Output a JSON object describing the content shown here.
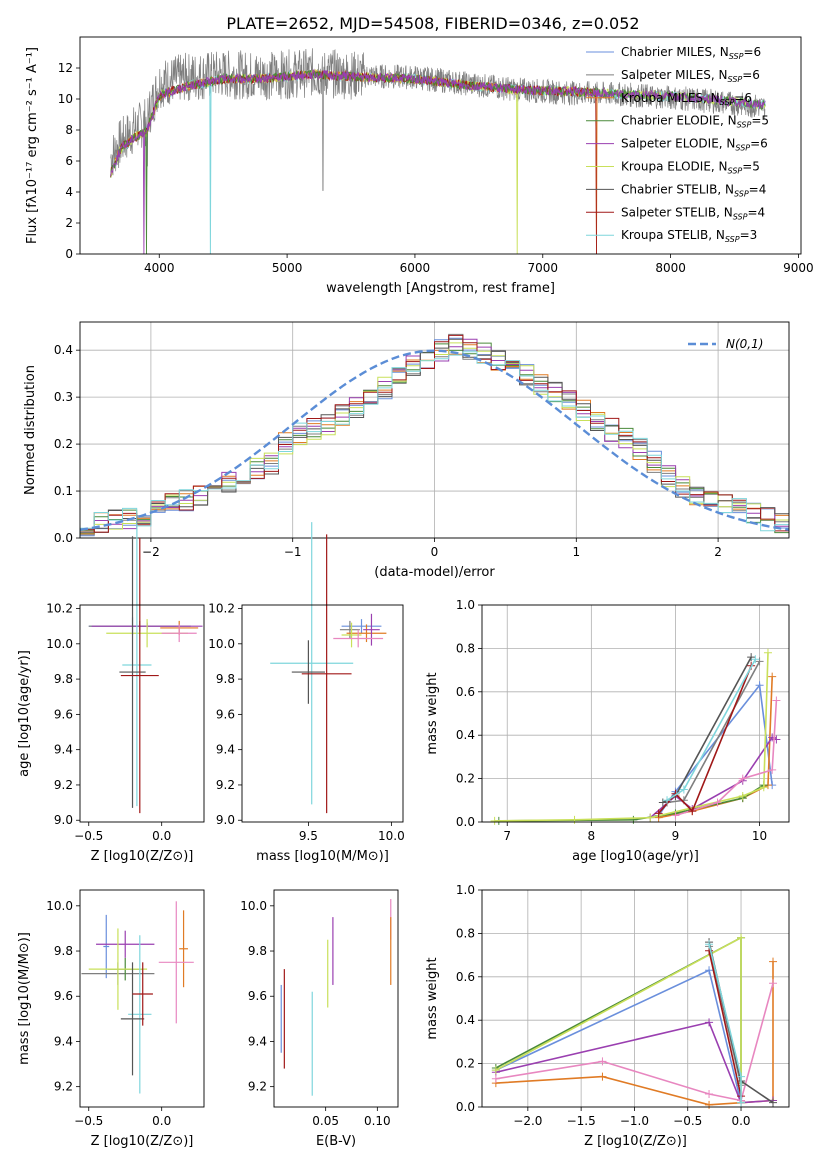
{
  "title": "PLATE=2652, MJD=54508, FIBERID=0346, z=0.052",
  "colors": {
    "chabrier_miles": "#6a8fdc",
    "salpeter_miles": "#7f7f7f",
    "kroupa_miles": "#e07b25",
    "chabrier_elodie": "#4a8a3a",
    "salpeter_elodie": "#9a3fb0",
    "kroupa_elodie": "#c9e05a",
    "chabrier_stelib": "#555555",
    "salpeter_stelib": "#a01818",
    "kroupa_stelib": "#7fd6dc",
    "pink": "#e887c0",
    "gaussian": "#5b8dd6"
  },
  "chart_data": [
    {
      "id": "spectrum",
      "type": "line",
      "xlabel": "wavelength [Angstrom, rest frame]",
      "ylabel": "Flux [fλ10⁻¹⁷ erg cm⁻² s⁻¹ A⁻¹]",
      "xlim": [
        3380,
        9020
      ],
      "ylim": [
        0,
        14
      ],
      "xticks": [
        4000,
        5000,
        6000,
        7000,
        8000,
        9000
      ],
      "yticks": [
        0,
        2,
        4,
        6,
        8,
        10,
        12
      ],
      "legend_position": "right",
      "legend": [
        {
          "label": "Chabrier MILES, N",
          "sub": "SSP",
          "tail": "=6",
          "color": "chabrier_miles"
        },
        {
          "label": "Salpeter MILES, N",
          "sub": "SSP",
          "tail": "=6",
          "color": "salpeter_miles"
        },
        {
          "label": "Kroupa MILES, N",
          "sub": "SSP",
          "tail": "=6",
          "color": "kroupa_miles"
        },
        {
          "label": "Chabrier ELODIE, N",
          "sub": "SSP",
          "tail": "=5",
          "color": "chabrier_elodie"
        },
        {
          "label": "Salpeter ELODIE, N",
          "sub": "SSP",
          "tail": "=6",
          "color": "salpeter_elodie"
        },
        {
          "label": "Kroupa ELODIE, N",
          "sub": "SSP",
          "tail": "=5",
          "color": "kroupa_elodie"
        },
        {
          "label": "Chabrier STELIB, N",
          "sub": "SSP",
          "tail": "=4",
          "color": "chabrier_stelib"
        },
        {
          "label": "Salpeter STELIB, N",
          "sub": "SSP",
          "tail": "=4",
          "color": "salpeter_stelib"
        },
        {
          "label": "Kroupa STELIB, N",
          "sub": "SSP",
          "tail": "=3",
          "color": "kroupa_stelib"
        }
      ],
      "data_flux": [
        [
          3620,
          6.2
        ],
        [
          3700,
          7.2
        ],
        [
          3800,
          8.0
        ],
        [
          3900,
          8.6
        ],
        [
          4000,
          11.0
        ],
        [
          4200,
          11.4
        ],
        [
          4500,
          11.6
        ],
        [
          4800,
          11.5
        ],
        [
          5200,
          11.7
        ],
        [
          5600,
          11.5
        ],
        [
          6000,
          11.4
        ],
        [
          6400,
          11.0
        ],
        [
          6800,
          10.6
        ],
        [
          7200,
          10.4
        ],
        [
          7600,
          10.3
        ],
        [
          8000,
          10.1
        ],
        [
          8400,
          9.8
        ],
        [
          8700,
          9.5
        ]
      ],
      "model_flux": [
        [
          3620,
          5.2
        ],
        [
          3700,
          6.8
        ],
        [
          3800,
          7.5
        ],
        [
          3900,
          7.9
        ],
        [
          4000,
          10.2
        ],
        [
          4200,
          10.8
        ],
        [
          4500,
          11.3
        ],
        [
          4800,
          11.3
        ],
        [
          5200,
          11.6
        ],
        [
          5600,
          11.4
        ],
        [
          6000,
          11.3
        ],
        [
          6400,
          10.9
        ],
        [
          6800,
          10.6
        ],
        [
          7200,
          10.5
        ],
        [
          7600,
          10.3
        ],
        [
          8000,
          10.2
        ],
        [
          8400,
          9.9
        ],
        [
          8740,
          9.6
        ]
      ]
    },
    {
      "id": "residuals",
      "type": "bar",
      "xlabel": "(data-model)/error",
      "ylabel": "Normed distribution",
      "xlim": [
        -2.5,
        2.5
      ],
      "ylim": [
        0,
        0.46
      ],
      "xticks": [
        -2,
        -1,
        0,
        1,
        2
      ],
      "yticks": [
        0.0,
        0.1,
        0.2,
        0.3,
        0.4
      ],
      "grid": true,
      "legend_position": "top-right",
      "legend_label": "N(0,1)",
      "bin_edges_from": -2.5,
      "bin_width": 0.1,
      "mean_hist": [
        0.02,
        0.03,
        0.04,
        0.04,
        0.05,
        0.06,
        0.07,
        0.08,
        0.09,
        0.1,
        0.12,
        0.13,
        0.15,
        0.16,
        0.2,
        0.22,
        0.23,
        0.24,
        0.26,
        0.28,
        0.3,
        0.32,
        0.34,
        0.37,
        0.38,
        0.4,
        0.41,
        0.4,
        0.39,
        0.38,
        0.36,
        0.35,
        0.33,
        0.31,
        0.29,
        0.27,
        0.25,
        0.23,
        0.21,
        0.19,
        0.16,
        0.13,
        0.11,
        0.09,
        0.08,
        0.07,
        0.06,
        0.05,
        0.04,
        0.03
      ]
    },
    {
      "id": "age_vs_Z",
      "type": "scatter",
      "xlabel": "Z [log10(Z/Z⊙)]",
      "ylabel": "age  [log10(age/yr)]",
      "xlim": [
        -0.56,
        0.29
      ],
      "ylim": [
        8.99,
        10.22
      ],
      "xticks": [
        -0.5,
        0.0
      ],
      "yticks": [
        9.0,
        9.2,
        9.4,
        9.6,
        9.8,
        10.0,
        10.2
      ],
      "points": [
        {
          "c": "chabrier_miles",
          "x": -0.2,
          "y": 10.1,
          "xe": 0.3,
          "ye": 0.05
        },
        {
          "c": "salpeter_miles",
          "x": -0.15,
          "y": 10.1,
          "xe": 0.35,
          "ye": 0.03
        },
        {
          "c": "kroupa_miles",
          "x": 0.12,
          "y": 10.09,
          "xe": 0.13,
          "ye": 0.04
        },
        {
          "c": "salpeter_elodie",
          "x": -0.1,
          "y": 10.1,
          "xe": 0.38,
          "ye": 0.02
        },
        {
          "c": "kroupa_elodie",
          "x": -0.1,
          "y": 10.06,
          "xe": 0.28,
          "ye": 0.08
        },
        {
          "c": "pink",
          "x": 0.12,
          "y": 10.06,
          "xe": 0.12,
          "ye": 0.05
        },
        {
          "c": "kroupa_stelib",
          "x": -0.17,
          "y": 9.88,
          "xe": 0.1,
          "ye": 0.8
        },
        {
          "c": "chabrier_stelib",
          "x": -0.2,
          "y": 9.84,
          "xe": 0.09,
          "ye": 0.77
        },
        {
          "c": "salpeter_stelib",
          "x": -0.15,
          "y": 9.82,
          "xe": 0.13,
          "ye": 0.78
        }
      ]
    },
    {
      "id": "age_vs_mass",
      "type": "scatter",
      "xlabel": "mass [log10(M/M⊙)]",
      "ylabel": "",
      "xlim": [
        9.1,
        10.07
      ],
      "ylim": [
        8.99,
        10.22
      ],
      "xticks": [
        9.5,
        10.0
      ],
      "yticks": [
        9.0,
        9.2,
        9.4,
        9.6,
        9.8,
        10.0,
        10.2
      ],
      "points": [
        {
          "c": "chabrier_miles",
          "x": 9.82,
          "y": 10.1,
          "xe": 0.12,
          "ye": 0.04
        },
        {
          "c": "salpeter_miles",
          "x": 9.75,
          "y": 10.08,
          "xe": 0.06,
          "ye": 0.05
        },
        {
          "c": "kroupa_miles",
          "x": 9.85,
          "y": 10.06,
          "xe": 0.12,
          "ye": 0.05
        },
        {
          "c": "salpeter_elodie",
          "x": 9.88,
          "y": 10.08,
          "xe": 0.05,
          "ye": 0.09
        },
        {
          "c": "kroupa_elodie",
          "x": 9.76,
          "y": 10.05,
          "xe": 0.06,
          "ye": 0.07
        },
        {
          "c": "pink",
          "x": 9.8,
          "y": 10.03,
          "xe": 0.15,
          "ye": 0.05
        },
        {
          "c": "kroupa_stelib",
          "x": 9.52,
          "y": 9.89,
          "xe": 0.25,
          "ye": 0.8
        },
        {
          "c": "chabrier_stelib",
          "x": 9.5,
          "y": 9.84,
          "xe": 0.1,
          "ye": 0.18
        },
        {
          "c": "salpeter_stelib",
          "x": 9.61,
          "y": 9.83,
          "xe": 0.15,
          "ye": 0.79
        }
      ]
    },
    {
      "id": "weight_vs_age",
      "type": "line",
      "xlabel": "age  [log10(age/yr)]",
      "ylabel": "mass weight",
      "xlim": [
        6.7,
        10.35
      ],
      "ylim": [
        0,
        1
      ],
      "xticks": [
        7,
        8,
        9,
        10
      ],
      "yticks": [
        0.0,
        0.2,
        0.4,
        0.6,
        0.8,
        1.0
      ],
      "grid": true,
      "series": [
        {
          "c": "chabrier_miles",
          "x": [
            8.8,
            9.0,
            10.0,
            10.15
          ],
          "y": [
            0.03,
            0.14,
            0.63,
            0.17
          ]
        },
        {
          "c": "salpeter_miles",
          "x": [
            8.9,
            9.1,
            10.0
          ],
          "y": [
            0.09,
            0.1,
            0.74
          ]
        },
        {
          "c": "kroupa_miles",
          "x": [
            8.8,
            9.2,
            9.8,
            10.1,
            10.15
          ],
          "y": [
            0.02,
            0.05,
            0.11,
            0.17,
            0.67
          ]
        },
        {
          "c": "chabrier_elodie",
          "x": [
            6.9,
            8.5,
            9.0,
            9.8,
            10.05
          ],
          "y": [
            0.005,
            0.01,
            0.04,
            0.11,
            0.17
          ]
        },
        {
          "c": "salpeter_elodie",
          "x": [
            8.7,
            9.0,
            9.2,
            9.8,
            10.15,
            10.2
          ],
          "y": [
            0.02,
            0.12,
            0.06,
            0.19,
            0.39,
            0.38
          ]
        },
        {
          "c": "kroupa_elodie",
          "x": [
            6.85,
            7.8,
            8.7,
            9.8,
            10.05,
            10.1
          ],
          "y": [
            0.005,
            0.01,
            0.02,
            0.12,
            0.16,
            0.78
          ]
        },
        {
          "c": "pink",
          "x": [
            9.0,
            9.5,
            9.8,
            10.15,
            10.2
          ],
          "y": [
            0.03,
            0.09,
            0.2,
            0.24,
            0.56
          ]
        },
        {
          "c": "chabrier_stelib",
          "x": [
            8.85,
            9.0,
            9.9
          ],
          "y": [
            0.09,
            0.12,
            0.76
          ]
        },
        {
          "c": "salpeter_stelib",
          "x": [
            8.8,
            9.0,
            9.2,
            9.9
          ],
          "y": [
            0.04,
            0.13,
            0.05,
            0.72
          ]
        },
        {
          "c": "kroupa_stelib",
          "x": [
            8.9,
            9.1,
            9.95
          ],
          "y": [
            0.1,
            0.15,
            0.75
          ]
        }
      ]
    },
    {
      "id": "mass_vs_Z",
      "type": "scatter",
      "xlabel": "Z [log10(Z/Z⊙)]",
      "ylabel": "mass [log10(M/M⊙)]",
      "xlim": [
        -0.56,
        0.29
      ],
      "ylim": [
        9.11,
        10.07
      ],
      "xticks": [
        -0.5,
        0.0
      ],
      "yticks": [
        9.2,
        9.4,
        9.6,
        9.8,
        10.0
      ],
      "points": [
        {
          "c": "chabrier_miles",
          "x": -0.38,
          "y": 9.82,
          "xe": 0.02,
          "ye": 0.14
        },
        {
          "c": "salpeter_miles",
          "x": -0.3,
          "y": 9.7,
          "xe": 0.25,
          "ye": 0.05
        },
        {
          "c": "kroupa_miles",
          "x": 0.15,
          "y": 9.81,
          "xe": 0.03,
          "ye": 0.17
        },
        {
          "c": "chabrier_elodie",
          "x": -0.25,
          "y": 9.72,
          "xe": 0.12,
          "ye": 0.05
        },
        {
          "c": "salpeter_elodie",
          "x": -0.25,
          "y": 9.83,
          "xe": 0.2,
          "ye": 0.06
        },
        {
          "c": "kroupa_elodie",
          "x": -0.3,
          "y": 9.72,
          "xe": 0.2,
          "ye": 0.18
        },
        {
          "c": "pink",
          "x": 0.1,
          "y": 9.75,
          "xe": 0.12,
          "ye": 0.27
        },
        {
          "c": "kroupa_stelib",
          "x": -0.15,
          "y": 9.52,
          "xe": 0.08,
          "ye": 0.35
        },
        {
          "c": "chabrier_stelib",
          "x": -0.2,
          "y": 9.5,
          "xe": 0.08,
          "ye": 0.25
        },
        {
          "c": "salpeter_stelib",
          "x": -0.13,
          "y": 9.61,
          "xe": 0.07,
          "ye": 0.14
        }
      ]
    },
    {
      "id": "mass_vs_ebv",
      "type": "scatter",
      "xlabel": "E(B-V)",
      "ylabel": "",
      "xlim": [
        0.0,
        0.12
      ],
      "ylim": [
        9.11,
        10.07
      ],
      "xticks": [
        0.05,
        0.1
      ],
      "yticks": [
        9.2,
        9.4,
        9.6,
        9.8,
        10.0
      ],
      "points": [
        {
          "c": "chabrier_miles",
          "x": 0.007,
          "y": 9.5,
          "xe": 0,
          "ye": 0.15
        },
        {
          "c": "salpeter_stelib",
          "x": 0.01,
          "y": 9.5,
          "xe": 0,
          "ye": 0.22
        },
        {
          "c": "kroupa_stelib",
          "x": 0.037,
          "y": 9.39,
          "xe": 0,
          "ye": 0.23
        },
        {
          "c": "kroupa_elodie",
          "x": 0.052,
          "y": 9.7,
          "xe": 0,
          "ye": 0.15
        },
        {
          "c": "salpeter_elodie",
          "x": 0.057,
          "y": 9.8,
          "xe": 0,
          "ye": 0.15
        },
        {
          "c": "pink",
          "x": 0.113,
          "y": 9.94,
          "xe": 0,
          "ye": 0.09
        },
        {
          "c": "kroupa_miles",
          "x": 0.113,
          "y": 9.8,
          "xe": 0,
          "ye": 0.15
        }
      ]
    },
    {
      "id": "weight_vs_Z",
      "type": "line",
      "xlabel": "Z [log10(Z/Z⊙)]",
      "ylabel": "mass weight",
      "xlim": [
        -2.43,
        0.45
      ],
      "ylim": [
        0,
        1
      ],
      "xticks": [
        -2.0,
        -1.5,
        -1.0,
        -0.5,
        0.0
      ],
      "yticks": [
        0.0,
        0.2,
        0.4,
        0.6,
        0.8,
        1.0
      ],
      "grid": true,
      "series": [
        {
          "c": "chabrier_miles",
          "x": [
            -2.3,
            -0.3,
            0.0
          ],
          "y": [
            0.17,
            0.63,
            0.02
          ]
        },
        {
          "c": "salpeter_miles",
          "x": [
            -0.3,
            0.0
          ],
          "y": [
            0.74,
            0.1
          ]
        },
        {
          "c": "kroupa_miles",
          "x": [
            -2.3,
            -1.3,
            -0.3,
            0.0,
            0.3,
            0.3
          ],
          "y": [
            0.11,
            0.14,
            0.01,
            0.02,
            0.03,
            0.67
          ]
        },
        {
          "c": "chabrier_elodie",
          "x": [
            -2.3,
            0.0,
            0.0
          ],
          "y": [
            0.18,
            0.78,
            0.11
          ]
        },
        {
          "c": "salpeter_elodie",
          "x": [
            -2.3,
            -0.3,
            0.0,
            0.3
          ],
          "y": [
            0.16,
            0.39,
            0.02,
            0.03
          ]
        },
        {
          "c": "kroupa_elodie",
          "x": [
            -2.3,
            0.0,
            0.0
          ],
          "y": [
            0.17,
            0.78,
            0.02
          ]
        },
        {
          "c": "pink",
          "x": [
            -2.3,
            -1.3,
            -0.3,
            0.0,
            0.3
          ],
          "y": [
            0.13,
            0.21,
            0.06,
            0.03,
            0.57
          ]
        },
        {
          "c": "chabrier_stelib",
          "x": [
            -0.3,
            0.0,
            0.3
          ],
          "y": [
            0.76,
            0.12,
            0.02
          ]
        },
        {
          "c": "salpeter_stelib",
          "x": [
            -0.3,
            0.0
          ],
          "y": [
            0.72,
            0.05
          ]
        },
        {
          "c": "kroupa_stelib",
          "x": [
            -0.3,
            0.0,
            0.0
          ],
          "y": [
            0.75,
            0.14,
            0.02
          ]
        }
      ]
    }
  ]
}
